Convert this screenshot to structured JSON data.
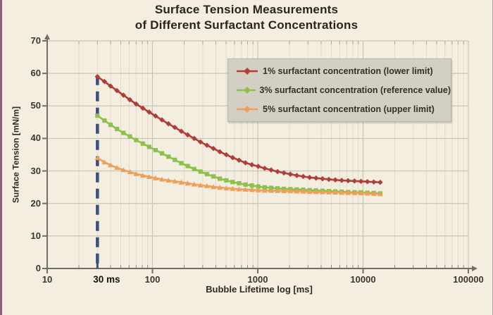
{
  "header": {
    "title_line1": "Surface Tension Measurements",
    "title_line2": "of Different Surfactant Concentrations"
  },
  "chart_data": {
    "type": "line",
    "title": "Surface Tension Measurements of Different Surfactant Concentrations",
    "xlabel": "Bubble Lifetime log [ms]",
    "ylabel": "Surface Tension [mN/m]",
    "x_scale": "log",
    "xlim": [
      10,
      100000
    ],
    "ylim": [
      0,
      70
    ],
    "grid": true,
    "legend_position": "top-right",
    "y_ticks": [
      0,
      10,
      20,
      30,
      40,
      50,
      60,
      70
    ],
    "x_ticks": [
      {
        "label": "10",
        "t": 10,
        "emphasis": false
      },
      {
        "label": "30 ms",
        "t": 30,
        "emphasis": true
      },
      {
        "label": "100",
        "t": 100,
        "emphasis": false
      },
      {
        "label": "1000",
        "t": 1000,
        "emphasis": false
      },
      {
        "label": "10000",
        "t": 10000,
        "emphasis": false
      },
      {
        "label": "100000",
        "t": 100000,
        "emphasis": false
      }
    ],
    "annotation": {
      "name": "measurement-start-line",
      "type": "dashed-vline",
      "t": 30,
      "from_value": 59,
      "to_value": 0,
      "color": "#3d5078"
    },
    "series": [
      {
        "name": "1% surfactant concentration (lower limit)",
        "color": "#ae3e37",
        "marker": "diamond",
        "points": [
          [
            30,
            59
          ],
          [
            35,
            57.5
          ],
          [
            40,
            56.1
          ],
          [
            46,
            54.7
          ],
          [
            53,
            53.3
          ],
          [
            61,
            51.9
          ],
          [
            70,
            50.6
          ],
          [
            81,
            49.3
          ],
          [
            93,
            48.1
          ],
          [
            107,
            46.9
          ],
          [
            123,
            45.7
          ],
          [
            142,
            44.5
          ],
          [
            163,
            43.4
          ],
          [
            188,
            42.2
          ],
          [
            216,
            41.1
          ],
          [
            249,
            40
          ],
          [
            286,
            38.9
          ],
          [
            329,
            37.9
          ],
          [
            379,
            36.9
          ],
          [
            436,
            35.9
          ],
          [
            502,
            35
          ],
          [
            577,
            34.1
          ],
          [
            664,
            33.3
          ],
          [
            764,
            32.5
          ],
          [
            879,
            31.9
          ],
          [
            1011,
            31.4
          ],
          [
            1164,
            30.8
          ],
          [
            1339,
            30.3
          ],
          [
            1541,
            29.8
          ],
          [
            1773,
            29.4
          ],
          [
            2040,
            29
          ],
          [
            2347,
            28.6
          ],
          [
            2701,
            28.3
          ],
          [
            3108,
            28
          ],
          [
            3576,
            27.8
          ],
          [
            4115,
            27.6
          ],
          [
            4735,
            27.4
          ],
          [
            5448,
            27.25
          ],
          [
            6269,
            27.1
          ],
          [
            7213,
            27
          ],
          [
            8300,
            26.9
          ],
          [
            9550,
            26.8
          ],
          [
            10989,
            26.7
          ],
          [
            12644,
            26.6
          ],
          [
            14549,
            26.5
          ]
        ]
      },
      {
        "name": "3% surfactant concentration (reference value)",
        "color": "#8ec04d",
        "marker": "square",
        "points": [
          [
            30,
            47
          ],
          [
            35,
            45.5
          ],
          [
            40,
            44.2
          ],
          [
            46,
            42.9
          ],
          [
            53,
            41.7
          ],
          [
            61,
            40.6
          ],
          [
            70,
            39.5
          ],
          [
            81,
            38.4
          ],
          [
            93,
            37.4
          ],
          [
            107,
            36.4
          ],
          [
            123,
            35.4
          ],
          [
            142,
            34.4
          ],
          [
            163,
            33.4
          ],
          [
            188,
            32.4
          ],
          [
            216,
            31.5
          ],
          [
            249,
            30.6
          ],
          [
            286,
            29.8
          ],
          [
            329,
            29
          ],
          [
            379,
            28.3
          ],
          [
            436,
            27.6
          ],
          [
            502,
            27.1
          ],
          [
            577,
            26.6
          ],
          [
            664,
            26.2
          ],
          [
            764,
            25.8
          ],
          [
            879,
            25.5
          ],
          [
            1011,
            25.2
          ],
          [
            1164,
            24.95
          ],
          [
            1339,
            24.8
          ],
          [
            1541,
            24.65
          ],
          [
            1773,
            24.5
          ],
          [
            2040,
            24.4
          ],
          [
            2347,
            24.3
          ],
          [
            2701,
            24.2
          ],
          [
            3108,
            24.1
          ],
          [
            3576,
            24
          ],
          [
            4115,
            23.9
          ],
          [
            4735,
            23.8
          ],
          [
            5448,
            23.7
          ],
          [
            6269,
            23.6
          ],
          [
            7213,
            23.5
          ],
          [
            8300,
            23.45
          ],
          [
            9550,
            23.4
          ],
          [
            10989,
            23.3
          ],
          [
            12644,
            23.2
          ],
          [
            14549,
            23.1
          ]
        ]
      },
      {
        "name": "5% surfactant concentration (upper limit)",
        "color": "#eda05a",
        "marker": "triangle",
        "points": [
          [
            30,
            34
          ],
          [
            35,
            32.7
          ],
          [
            40,
            31.8
          ],
          [
            46,
            31
          ],
          [
            53,
            30.3
          ],
          [
            61,
            29.7
          ],
          [
            70,
            29.1
          ],
          [
            81,
            28.6
          ],
          [
            93,
            28.2
          ],
          [
            107,
            27.8
          ],
          [
            123,
            27.4
          ],
          [
            142,
            27.1
          ],
          [
            163,
            26.8
          ],
          [
            188,
            26.5
          ],
          [
            216,
            26.2
          ],
          [
            249,
            25.9
          ],
          [
            286,
            25.6
          ],
          [
            329,
            25.4
          ],
          [
            379,
            25.1
          ],
          [
            436,
            24.9
          ],
          [
            502,
            24.7
          ],
          [
            577,
            24.55
          ],
          [
            664,
            24.4
          ],
          [
            764,
            24.3
          ],
          [
            879,
            24.2
          ],
          [
            1011,
            24.1
          ],
          [
            1164,
            24
          ],
          [
            1339,
            23.95
          ],
          [
            1541,
            23.9
          ],
          [
            1773,
            23.85
          ],
          [
            2040,
            23.8
          ],
          [
            2347,
            23.75
          ],
          [
            2701,
            23.7
          ],
          [
            3108,
            23.6
          ],
          [
            3576,
            23.55
          ],
          [
            4115,
            23.5
          ],
          [
            4735,
            23.45
          ],
          [
            5448,
            23.4
          ],
          [
            6269,
            23.35
          ],
          [
            7213,
            23.3
          ],
          [
            8300,
            23.25
          ],
          [
            9550,
            23.2
          ],
          [
            10989,
            23.1
          ],
          [
            12644,
            23
          ],
          [
            14549,
            22.9
          ]
        ]
      }
    ],
    "colors": {
      "background": "#f3eee0",
      "legend_background": "#d3cfc2",
      "grid_major": "#c9c5b6",
      "grid_minor": "#e0dccd",
      "axis": "#6f6f68",
      "dashed_line": "#3d5078",
      "left_edge_strip": "#8e5c7c"
    }
  }
}
